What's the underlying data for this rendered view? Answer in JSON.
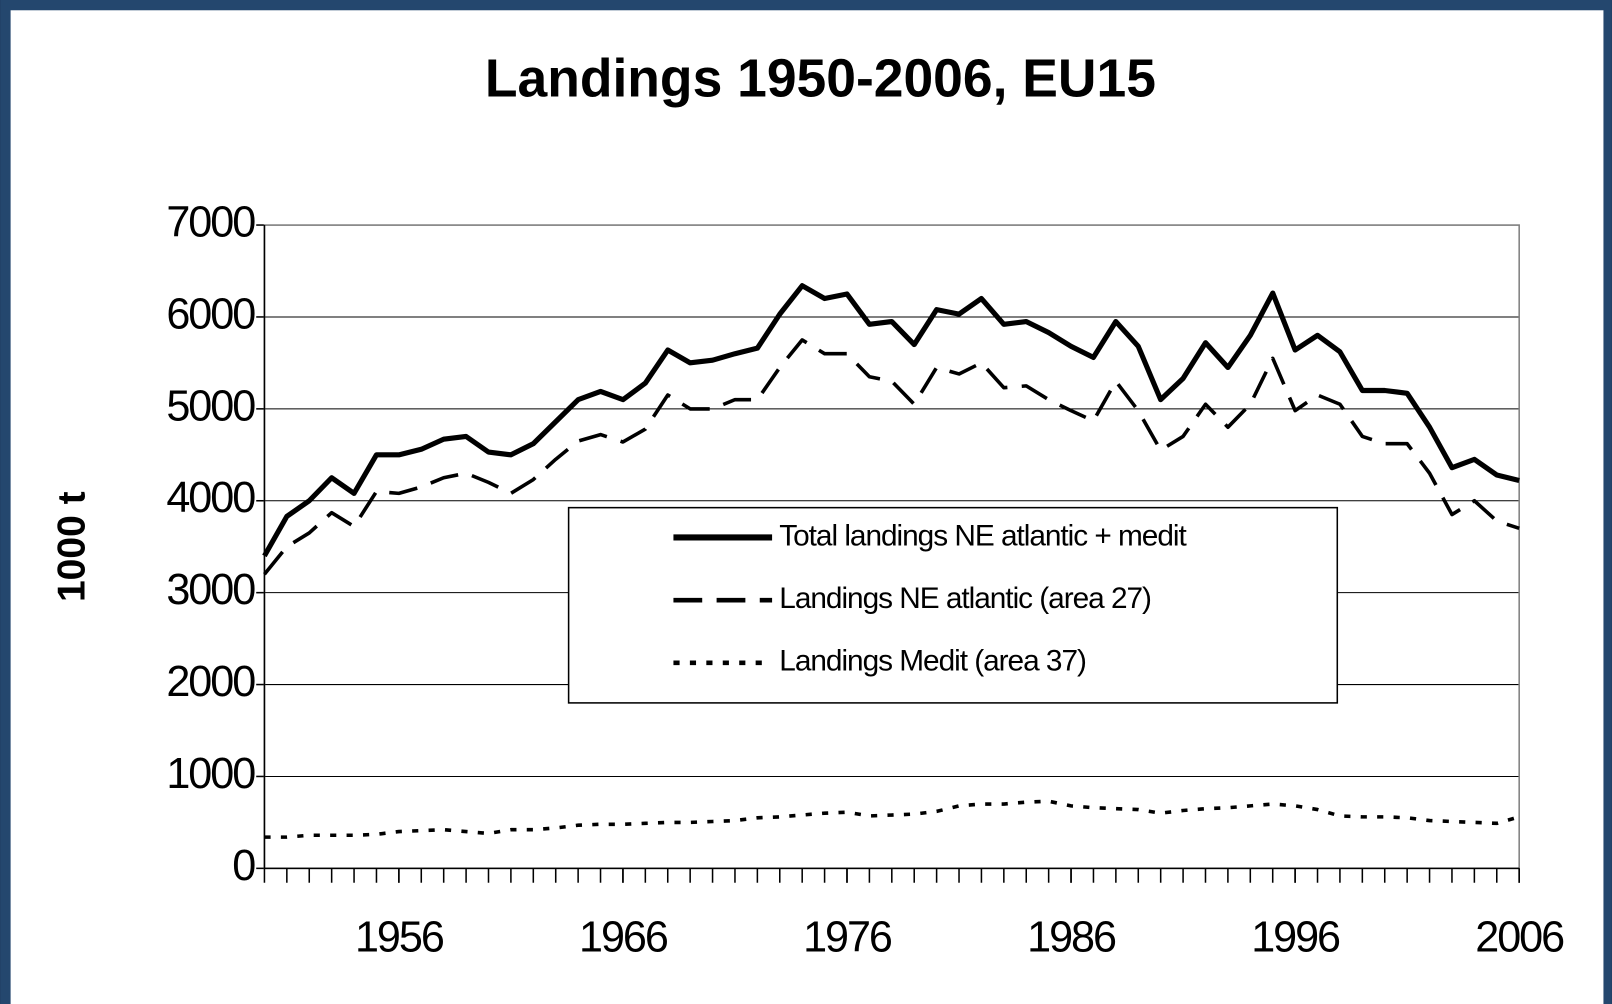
{
  "chart_data": {
    "type": "line",
    "title": "Landings 1950-2006, EU15",
    "y_label": "1000 t",
    "x": [
      1950,
      1951,
      1952,
      1953,
      1954,
      1955,
      1956,
      1957,
      1958,
      1959,
      1960,
      1961,
      1962,
      1963,
      1964,
      1965,
      1966,
      1967,
      1968,
      1969,
      1970,
      1971,
      1972,
      1973,
      1974,
      1975,
      1976,
      1977,
      1978,
      1979,
      1980,
      1981,
      1982,
      1983,
      1984,
      1985,
      1986,
      1987,
      1988,
      1989,
      1990,
      1991,
      1992,
      1993,
      1994,
      1995,
      1996,
      1997,
      1998,
      1999,
      2000,
      2001,
      2002,
      2003,
      2004,
      2005,
      2006
    ],
    "series": [
      {
        "name": "Total landings NE atlantic + medit",
        "color": "#000000",
        "dash": "solid",
        "values": [
          3400,
          3830,
          4000,
          4250,
          4080,
          4500,
          4500,
          4560,
          4670,
          4700,
          4530,
          4500,
          4620,
          4860,
          5100,
          5190,
          5100,
          5280,
          5640,
          5500,
          5530,
          5600,
          5660,
          6030,
          6340,
          6200,
          6250,
          5920,
          5950,
          5700,
          6080,
          6030,
          6200,
          5920,
          5950,
          5830,
          5680,
          5560,
          5950,
          5680,
          5100,
          5330,
          5720,
          5450,
          5800,
          6260,
          5640,
          5800,
          5620,
          5200,
          5200,
          5170,
          4800,
          4360,
          4450,
          4280,
          4220
        ]
      },
      {
        "name": "Landings NE atlantic (area 27)",
        "color": "#000000",
        "dash": "dashed",
        "values": [
          3200,
          3500,
          3650,
          3870,
          3720,
          4100,
          4080,
          4150,
          4250,
          4300,
          4200,
          4080,
          4230,
          4450,
          4650,
          4720,
          4640,
          4780,
          5150,
          5000,
          5000,
          5100,
          5100,
          5450,
          5750,
          5600,
          5600,
          5350,
          5300,
          5050,
          5450,
          5380,
          5500,
          5230,
          5250,
          5100,
          4980,
          4870,
          5300,
          4980,
          4550,
          4700,
          5050,
          4800,
          5050,
          5550,
          4980,
          5150,
          5050,
          4700,
          4620,
          4620,
          4300,
          3850,
          4000,
          3780,
          3700
        ]
      },
      {
        "name": "Landings Medit (area 37)",
        "color": "#000000",
        "dash": "dotted",
        "values": [
          340,
          340,
          360,
          360,
          360,
          370,
          400,
          410,
          420,
          400,
          380,
          420,
          420,
          440,
          470,
          480,
          480,
          490,
          500,
          500,
          510,
          520,
          550,
          560,
          580,
          600,
          610,
          570,
          580,
          590,
          620,
          680,
          700,
          700,
          720,
          730,
          680,
          660,
          650,
          640,
          600,
          630,
          650,
          660,
          680,
          700,
          680,
          640,
          570,
          560,
          560,
          550,
          520,
          510,
          500,
          490,
          560
        ]
      }
    ],
    "xlim": [
      1950,
      2006
    ],
    "xticks": [
      1956,
      1966,
      1976,
      1986,
      1996,
      2006
    ],
    "ylim": [
      0,
      7000
    ],
    "yticks": [
      0,
      1000,
      2000,
      3000,
      4000,
      5000,
      6000,
      7000
    ],
    "grid": true,
    "legend": "center"
  }
}
